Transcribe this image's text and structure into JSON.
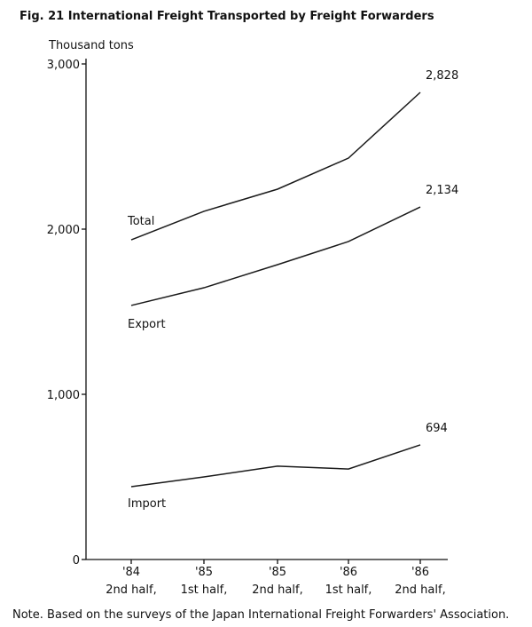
{
  "chart_data": {
    "type": "line",
    "title": "Fig. 21  International Freight Transported by Freight Forwarders",
    "y_label": "Thousand tons",
    "note": "Note.  Based on the surveys of the Japan International Freight Forwarders' Association.",
    "categories": [
      "'84\n2nd half,",
      "'85\n1st half,",
      "'85\n2nd half,",
      "'86\n1st half,",
      "'86\n2nd half,"
    ],
    "series": [
      {
        "name": "Total",
        "color": "#1a1a1a",
        "values": [
          1935,
          2108,
          2242,
          2430,
          2828
        ],
        "value_labels": [
          null,
          null,
          null,
          null,
          "2,828"
        ]
      },
      {
        "name": "Export",
        "color": "#1a1a1a",
        "values": [
          1538,
          1645,
          1785,
          1925,
          2134
        ],
        "value_labels": [
          null,
          null,
          null,
          null,
          "2,134"
        ]
      },
      {
        "name": "Import",
        "color": "#1a1a1a",
        "values": [
          441,
          500,
          565,
          548,
          694
        ],
        "value_labels": [
          null,
          null,
          null,
          null,
          "694"
        ]
      }
    ],
    "ylim": [
      0,
      3000
    ],
    "yticks": [
      0,
      {
        "value": 1000,
        "label": "1,000"
      },
      {
        "value": 2000,
        "label": "2,000"
      },
      {
        "value": 3000,
        "label": "3,000"
      }
    ],
    "grid": false
  }
}
